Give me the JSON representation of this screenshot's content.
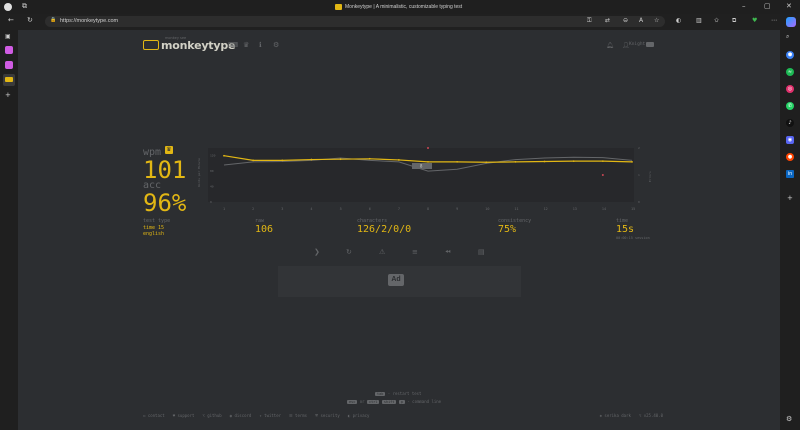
{
  "browser": {
    "tab_title": "Monkeytype | A minimalistic, customizable typing test",
    "url": "https://monkeytype.com",
    "right_rail_icons": [
      "search-icon",
      "tag-icon",
      "spotify-icon",
      "instagram-icon",
      "whatsapp-icon",
      "tiktok-icon",
      "discord-icon",
      "reddit-icon",
      "linkedin-icon",
      "plus-icon",
      "settings-icon"
    ]
  },
  "header": {
    "logo_small": "monkey see",
    "logo": "monkeytype",
    "user": "Knight"
  },
  "result": {
    "wpm_label": "wpm",
    "wpm": "101",
    "acc_label": "acc",
    "acc": "96%",
    "test_type_label": "test type",
    "test_type_lines": [
      "time 15",
      "english"
    ],
    "raw_label": "raw",
    "raw": "106",
    "characters_label": "characters",
    "characters": "126/2/0/0",
    "consistency_label": "consistency",
    "consistency": "75%",
    "time_label": "time",
    "time": "15s",
    "time_sub": "00:00:15 session",
    "y_axis_left_label": "Words per Minute",
    "y_axis_right_label": "Errors",
    "tooltip": "8"
  },
  "chart_data": {
    "type": "line",
    "x": [
      1,
      2,
      3,
      4,
      5,
      6,
      7,
      8,
      9,
      10,
      11,
      12,
      13,
      14,
      15
    ],
    "series": [
      {
        "name": "wpm",
        "color": "#e2b714",
        "values": [
          120,
          108,
          108,
          110,
          111,
          112,
          109,
          104,
          104,
          103,
          104,
          105,
          106,
          106,
          104
        ]
      },
      {
        "name": "raw",
        "color": "#646669",
        "values": [
          96,
          104,
          105,
          108,
          114,
          108,
          104,
          80,
          85,
          100,
          110,
          114,
          116,
          115,
          108
        ]
      },
      {
        "name": "errors",
        "color": "#ca4754",
        "points": [
          [
            8,
            2
          ],
          [
            14,
            1
          ]
        ]
      }
    ],
    "x_ticks": [
      "1",
      "2",
      "3",
      "4",
      "5",
      "6",
      "7",
      "8",
      "9",
      "10",
      "11",
      "12",
      "13",
      "14",
      "15"
    ],
    "y_ticks_left": [
      "0",
      "40",
      "80",
      "120"
    ],
    "y_ticks_right": [
      "0",
      "1",
      "2"
    ],
    "ylim": [
      0,
      140
    ],
    "ylim_right": [
      0,
      2
    ]
  },
  "ad": {
    "label": "Ad"
  },
  "footer": {
    "hint1_key": "tab",
    "hint1_text": "- restart test",
    "hint2_keys": [
      "esc",
      "or",
      "ctrl",
      "shift",
      "p"
    ],
    "hint2_text": "- command line",
    "links": [
      "contact",
      "support",
      "github",
      "discord",
      "twitter",
      "terms",
      "security",
      "privacy"
    ],
    "theme": "serika dark",
    "version": "v25.40.0"
  }
}
